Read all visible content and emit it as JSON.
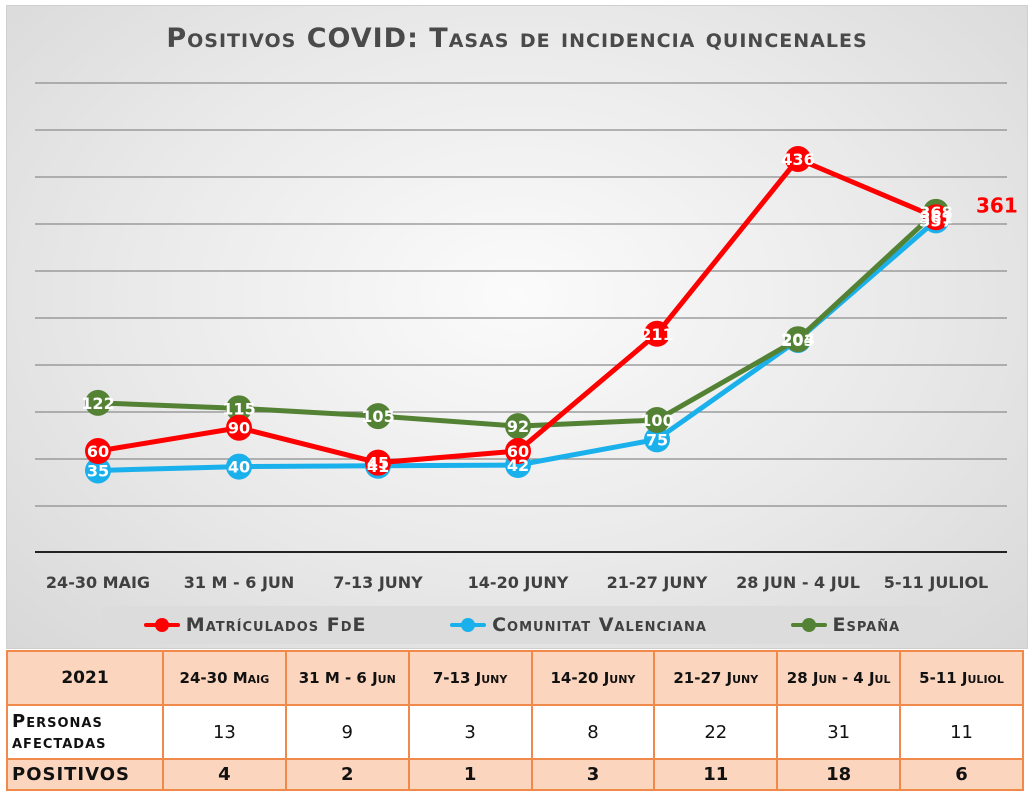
{
  "chart_data": {
    "type": "line",
    "title": "Positivos COVID: Tasas de incidencia quincenales",
    "categories": [
      "24-30 MAIG",
      "31 M - 6 JUN",
      "7-13 JUNY",
      "14-20 JUNY",
      "21-27 JUNY",
      "28 JUN - 4 JUL",
      "5-11 JULIOL"
    ],
    "series": [
      {
        "name": "Matrículados FdE",
        "color": "#ff0000",
        "values": [
          60,
          90,
          45,
          60,
          211,
          436,
          361
        ]
      },
      {
        "name": "Comunitat Valenciana",
        "color": "#1ab0ec",
        "values": [
          35,
          40,
          41,
          42,
          75,
          203,
          357
        ]
      },
      {
        "name": "España",
        "color": "#548235",
        "values": [
          122,
          115,
          105,
          92,
          100,
          204,
          368
        ]
      }
    ],
    "annotations": [
      {
        "text": "361",
        "color": "#ff0000"
      }
    ],
    "ylim": [
      -70,
      530
    ],
    "grid": true,
    "legend": "bottom"
  },
  "legend": {
    "items": [
      "Matrículados FdE",
      "Comunitat Valenciana",
      "España"
    ]
  },
  "table": {
    "year": "2021",
    "columns": [
      "24-30 Maig",
      "31 M - 6 Jun",
      "7-13 Juny",
      "14-20 Juny",
      "21-27 Juny",
      "28 Jun - 4 Jul",
      "5-11 Juliol"
    ],
    "rows": [
      {
        "label": "Personas afectadas",
        "values": [
          "13",
          "9",
          "3",
          "8",
          "22",
          "31",
          "11"
        ]
      },
      {
        "label": "POSITIVOS",
        "values": [
          "4",
          "2",
          "1",
          "3",
          "11",
          "18",
          "6"
        ]
      }
    ]
  }
}
